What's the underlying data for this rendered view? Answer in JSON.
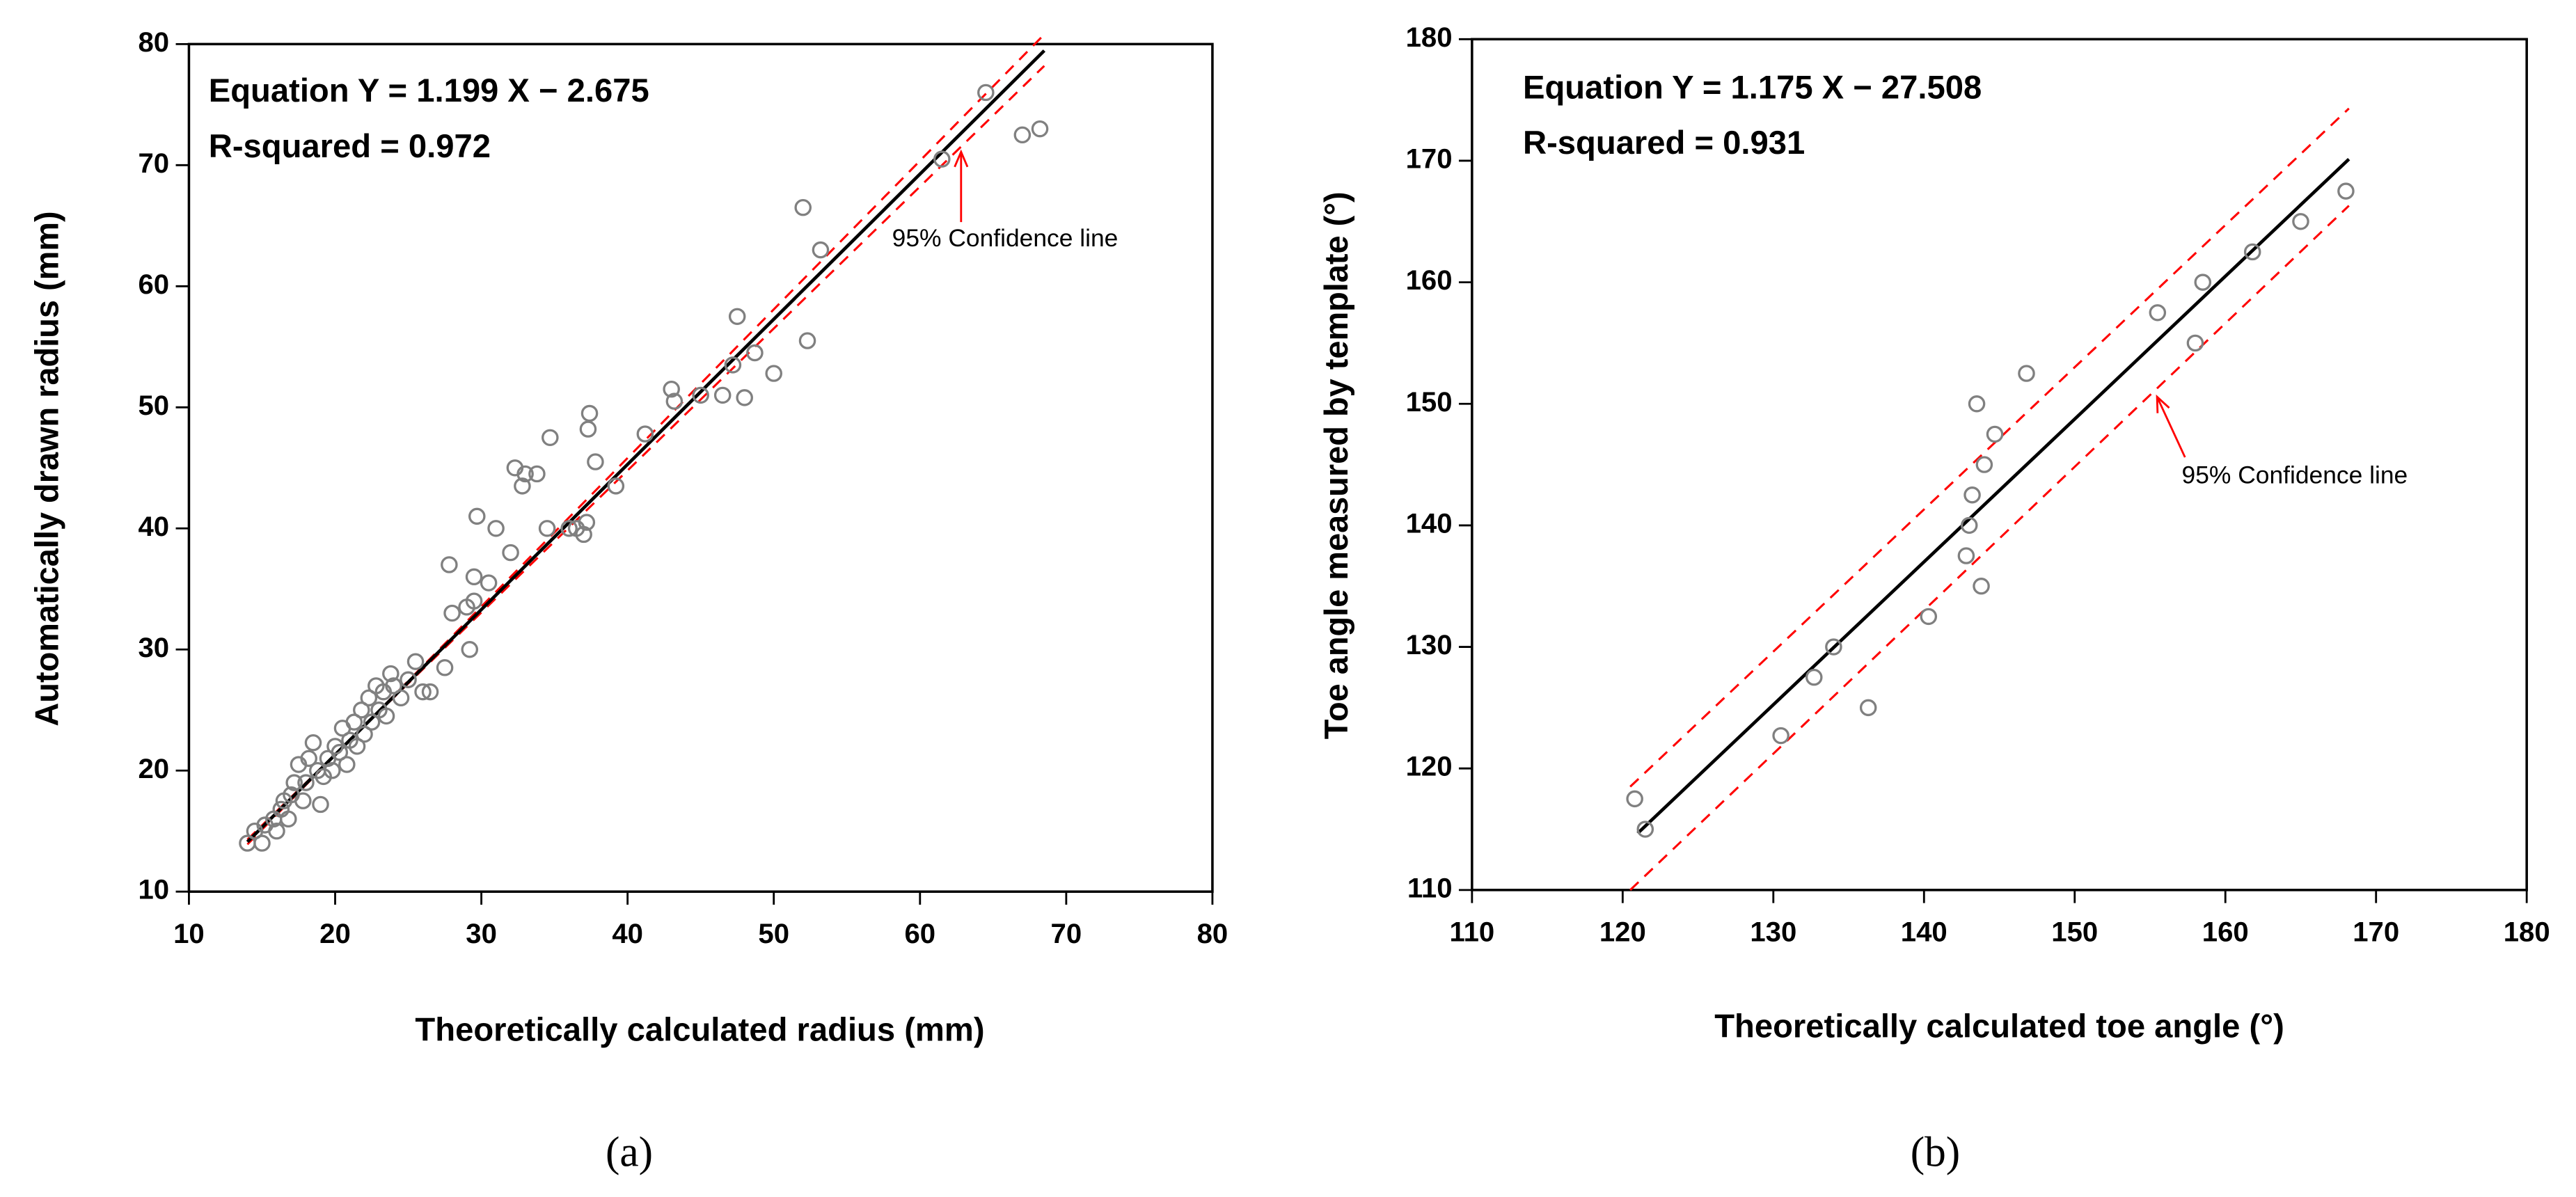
{
  "chart_data": [
    {
      "type": "scatter",
      "panel_label": "(a)",
      "equation": "Equation Y = 1.199 X − 2.675",
      "r_squared": "R-squared = 0.972",
      "confidence_label": "95% Confidence line",
      "xlabel": "Theoretically calculated radius (mm)",
      "ylabel": "Automatically drawn radius (mm)",
      "xlim": [
        10,
        80
      ],
      "ylim": [
        10,
        80
      ],
      "xticks": [
        10,
        20,
        30,
        40,
        50,
        60,
        70,
        80
      ],
      "yticks": [
        10,
        20,
        30,
        40,
        50,
        60,
        70,
        80
      ],
      "points": {
        "color": "#808080",
        "x": [
          14,
          14.5,
          15,
          15.2,
          15.8,
          16,
          16.3,
          16.5,
          16.8,
          17,
          17.2,
          17.5,
          17.8,
          18,
          18.2,
          18.5,
          18.8,
          19,
          19.2,
          19.5,
          19.8,
          20,
          20.3,
          20.5,
          20.8,
          21,
          21.3,
          21.5,
          21.8,
          22,
          22.3,
          22.5,
          22.8,
          23,
          23.3,
          23.5,
          23.8,
          24,
          24.5,
          25,
          25.5,
          26,
          26.5,
          27.5,
          27.8,
          28,
          29,
          29.2,
          29.5,
          29.5,
          29.7,
          30.5,
          31,
          32,
          32.3,
          32.8,
          33,
          33.8,
          34.5,
          34.7,
          36,
          36.5,
          37,
          37.2,
          37.3,
          37.4,
          37.8,
          39.2,
          41.2,
          43,
          43.2,
          45,
          46.5,
          47.2,
          47.5,
          48,
          48.7,
          50,
          52,
          52.3,
          53.2,
          61.5,
          64.5,
          67,
          68.2
        ],
        "y": [
          14,
          15,
          14,
          15.5,
          16,
          15,
          16.8,
          17.5,
          16,
          18,
          19,
          20.5,
          17.5,
          19,
          21,
          22.3,
          20,
          17.2,
          19.5,
          21,
          20,
          22,
          21.5,
          23.5,
          20.5,
          22.5,
          24,
          22,
          25,
          23,
          26,
          24,
          27,
          25,
          26.5,
          24.5,
          28,
          27,
          26,
          27.5,
          29,
          26.5,
          26.5,
          28.5,
          37,
          33,
          33.5,
          30,
          34,
          36,
          41,
          35.5,
          40,
          38,
          45,
          43.5,
          44.5,
          44.5,
          40,
          47.5,
          40,
          40,
          39.5,
          40.5,
          48.2,
          49.5,
          45.5,
          43.5,
          47.8,
          51.5,
          50.5,
          51,
          51,
          53.5,
          57.5,
          50.8,
          54.5,
          52.8,
          66.5,
          55.5,
          63,
          70.5,
          76,
          72.5,
          73
        ]
      },
      "fit_line": {
        "color": "#000000",
        "x": [
          14,
          68.5
        ],
        "y": [
          14.11,
          79.46
        ]
      },
      "confidence_lines": [
        {
          "color": "#ff0000",
          "x": [
            14,
            68.5
          ],
          "y": [
            13.9,
            80.8
          ]
        },
        {
          "color": "#ff0000",
          "x": [
            14,
            68.5
          ],
          "y": [
            14.3,
            78.2
          ]
        }
      ]
    },
    {
      "type": "scatter",
      "panel_label": "(b)",
      "equation": "Equation Y = 1.175 X − 27.508",
      "r_squared": "R-squared = 0.931",
      "confidence_label": "95% Confidence line",
      "xlabel": "Theoretically calculated toe angle (°)",
      "ylabel": "Toe angle measured by template (°)",
      "xlim": [
        110,
        180
      ],
      "ylim": [
        110,
        180
      ],
      "xticks": [
        110,
        120,
        130,
        140,
        150,
        160,
        170,
        180
      ],
      "yticks": [
        110,
        120,
        130,
        140,
        150,
        160,
        170,
        180
      ],
      "points": {
        "color": "#808080",
        "x": [
          120.8,
          121.5,
          130.5,
          132.7,
          134,
          136.3,
          140.3,
          142.8,
          143,
          143.2,
          143.5,
          143.8,
          144,
          144.7,
          146.8,
          155.5,
          158,
          158.5,
          161.8,
          165,
          168
        ],
        "y": [
          117.5,
          115,
          122.7,
          127.5,
          130,
          125,
          132.5,
          137.5,
          140,
          142.5,
          150,
          135,
          145,
          147.5,
          152.5,
          157.5,
          155,
          160,
          162.5,
          165,
          167.5
        ]
      },
      "fit_line": {
        "color": "#000000",
        "x": [
          121,
          168.2
        ],
        "y": [
          114.67,
          170.13
        ]
      },
      "confidence_lines": [
        {
          "color": "#ff0000",
          "x": [
            120.5,
            168.2
          ],
          "y": [
            118.5,
            174.3
          ]
        },
        {
          "color": "#ff0000",
          "x": [
            120.5,
            168.2
          ],
          "y": [
            110,
            166.3
          ]
        }
      ]
    }
  ]
}
